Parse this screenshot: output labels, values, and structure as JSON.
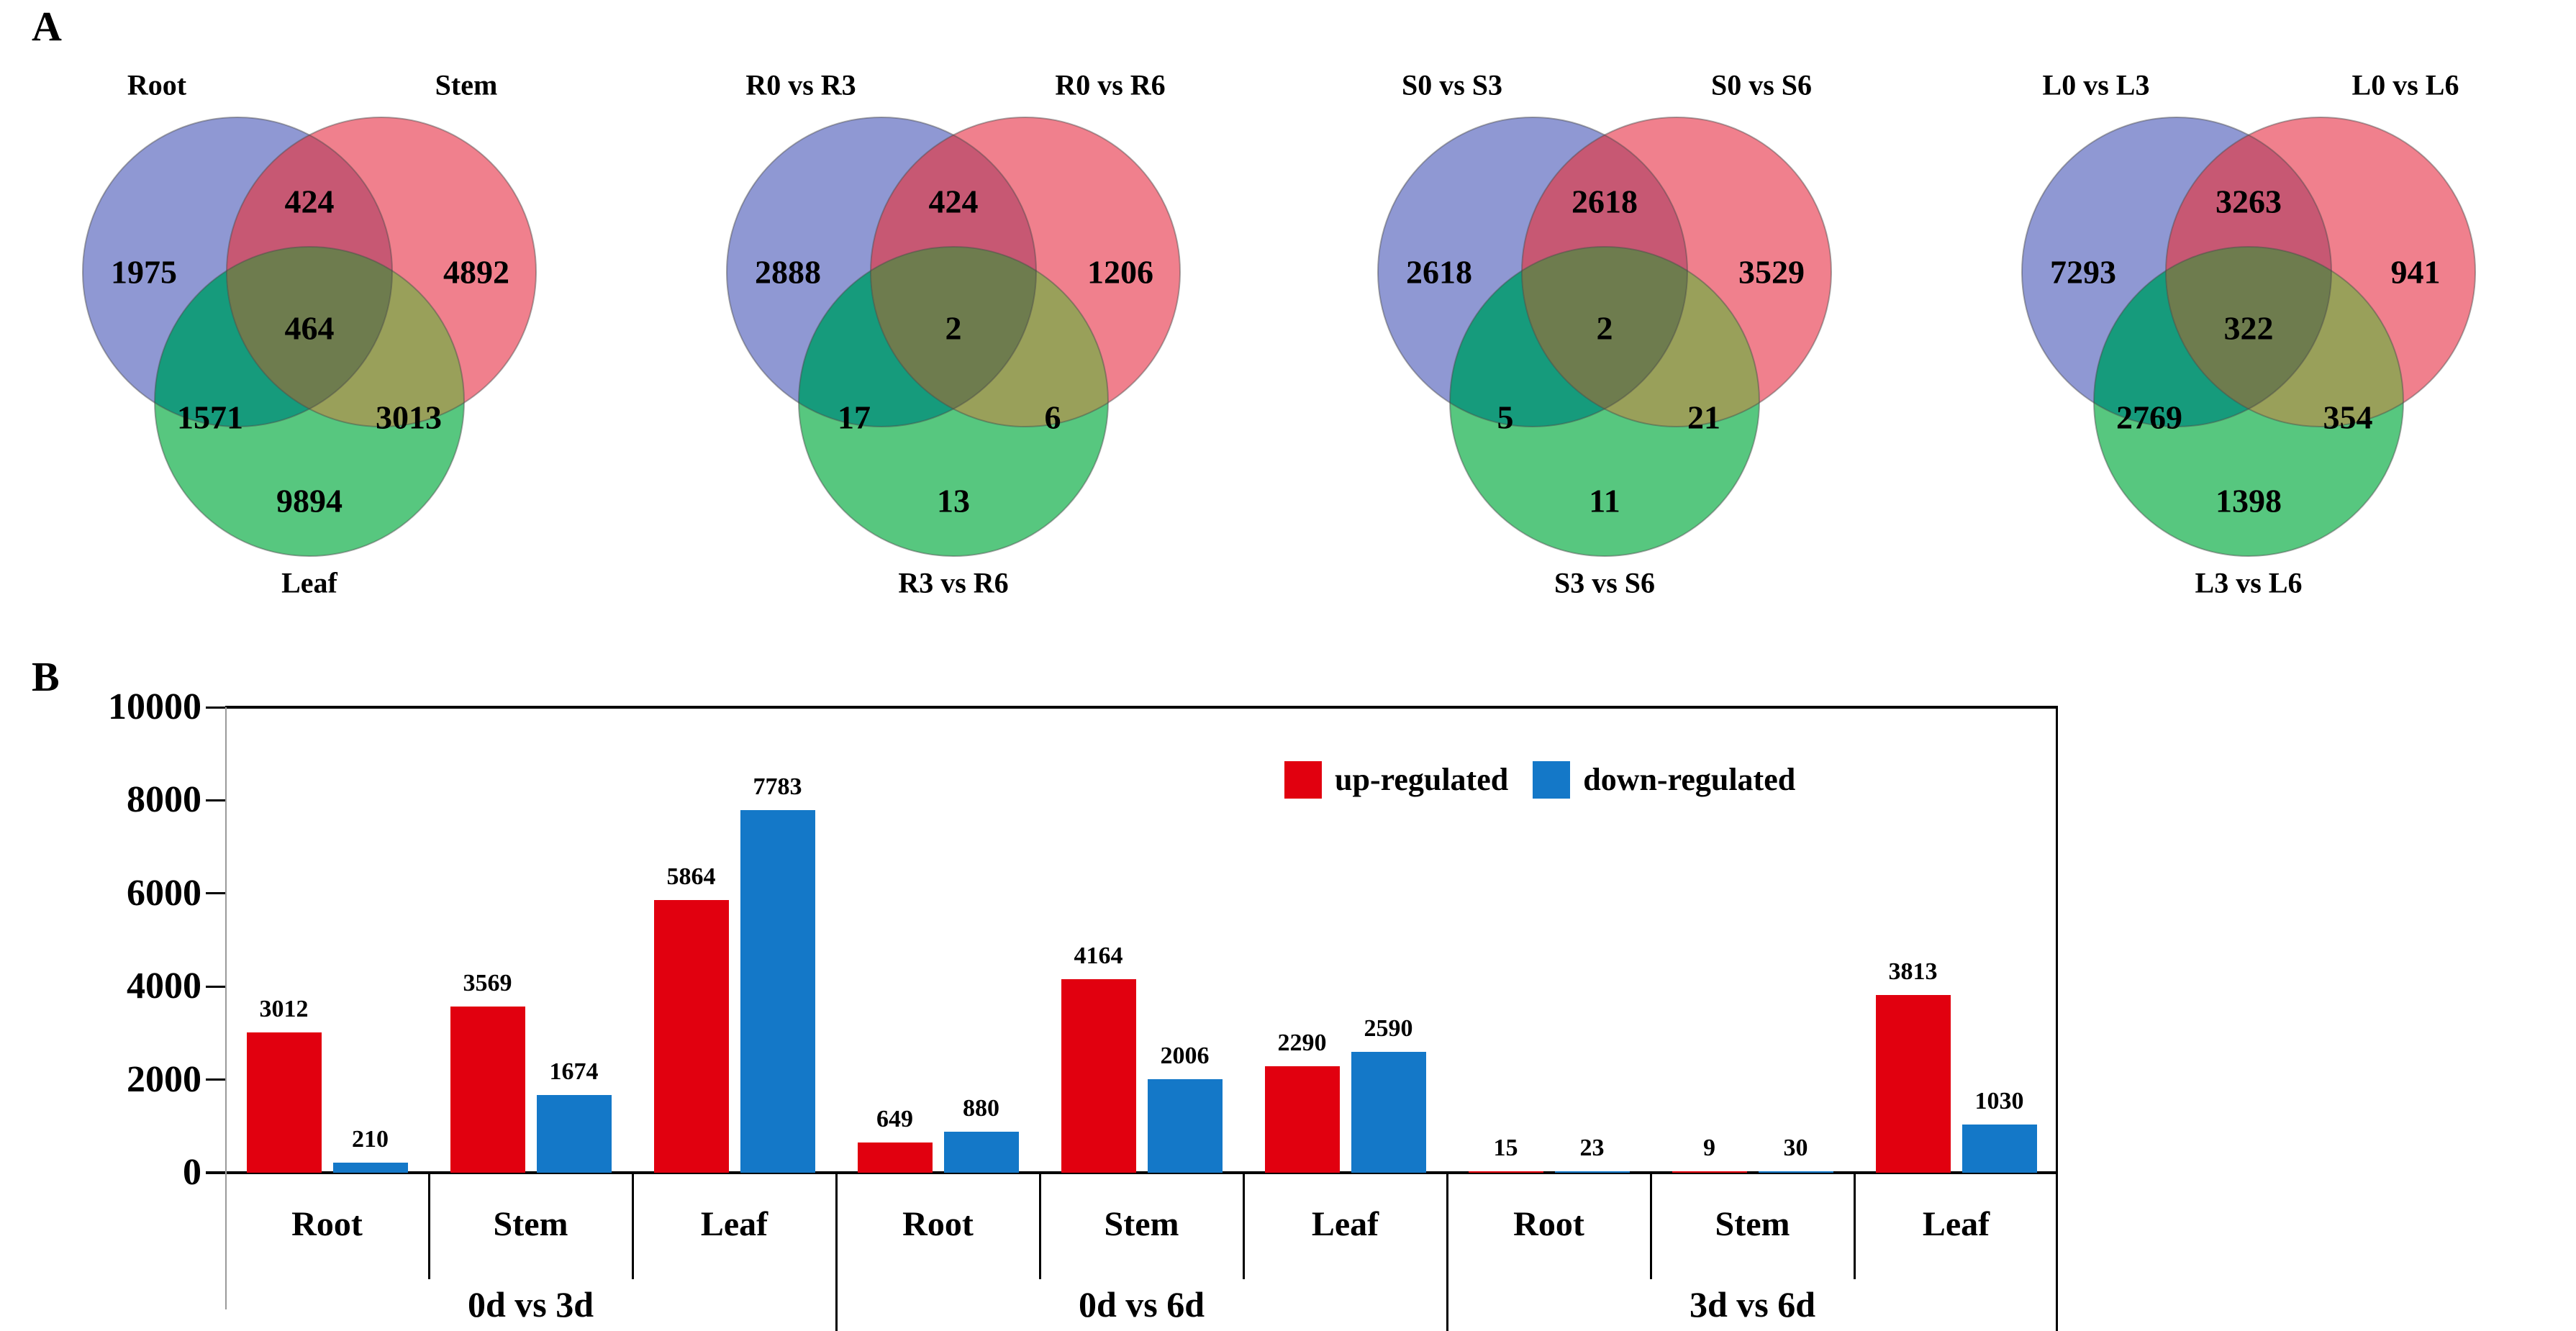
{
  "page": {
    "panel_a_label": "A",
    "panel_b_label": "B",
    "background": "#ffffff"
  },
  "colors": {
    "venn_set1_only": "#8F98D3",
    "venn_set2_only": "#F0808D",
    "venn_set3_only": "#57C77F",
    "venn_overlap_12": "#C75873",
    "venn_overlap_13": "#169B7C",
    "venn_overlap_23": "#99A05A",
    "venn_center": "#6E7C4E",
    "venn_outline": "#4a4a4a",
    "bar_up": "#E1000F",
    "bar_down": "#1478C8",
    "axis": "#000000"
  },
  "chart_data": [
    {
      "type": "venn",
      "label_left": "Root",
      "label_right": "Stem",
      "label_bottom": "Leaf",
      "only_left": 1975,
      "only_right": 4892,
      "top_overlap": 424,
      "center": 464,
      "left_overlap": 1571,
      "right_overlap": 3013,
      "only_bottom": 9894
    },
    {
      "type": "venn",
      "label_left": "R0 vs R3",
      "label_right": "R0 vs R6",
      "label_bottom": "R3 vs R6",
      "only_left": 2888,
      "only_right": 1206,
      "top_overlap": 424,
      "center": 2,
      "left_overlap": 17,
      "right_overlap": 6,
      "only_bottom": 13
    },
    {
      "type": "venn",
      "label_left": "S0 vs S3",
      "label_right": "S0 vs S6",
      "label_bottom": "S3 vs S6",
      "only_left": 2618,
      "only_right": 3529,
      "top_overlap": 2618,
      "center": 2,
      "left_overlap": 5,
      "right_overlap": 21,
      "only_bottom": 11
    },
    {
      "type": "venn",
      "label_left": "L0 vs L3",
      "label_right": "L0 vs L6",
      "label_bottom": "L3 vs L6",
      "only_left": 7293,
      "only_right": 941,
      "top_overlap": 3263,
      "center": 322,
      "left_overlap": 2769,
      "right_overlap": 354,
      "only_bottom": 1398
    },
    {
      "type": "bar",
      "title": "",
      "xlabel": "",
      "ylabel": "",
      "ylim": [
        0,
        10000
      ],
      "yticks": [
        0,
        2000,
        4000,
        6000,
        8000,
        10000
      ],
      "grid": false,
      "legend_position": "top-right-inside",
      "groups": [
        {
          "label": "0d vs 3d",
          "categories": [
            "Root",
            "Stem",
            "Leaf"
          ]
        },
        {
          "label": "0d vs 6d",
          "categories": [
            "Root",
            "Stem",
            "Leaf"
          ]
        },
        {
          "label": "3d vs 6d",
          "categories": [
            "Root",
            "Stem",
            "Leaf"
          ]
        }
      ],
      "series": [
        {
          "name": "up-regulated",
          "color": "#E1000F",
          "values": [
            3012,
            3569,
            5864,
            649,
            4164,
            2290,
            15,
            9,
            3813
          ]
        },
        {
          "name": "down-regulated",
          "color": "#1478C8",
          "values": [
            210,
            1674,
            7783,
            880,
            2006,
            2590,
            23,
            30,
            1030
          ]
        }
      ]
    }
  ]
}
